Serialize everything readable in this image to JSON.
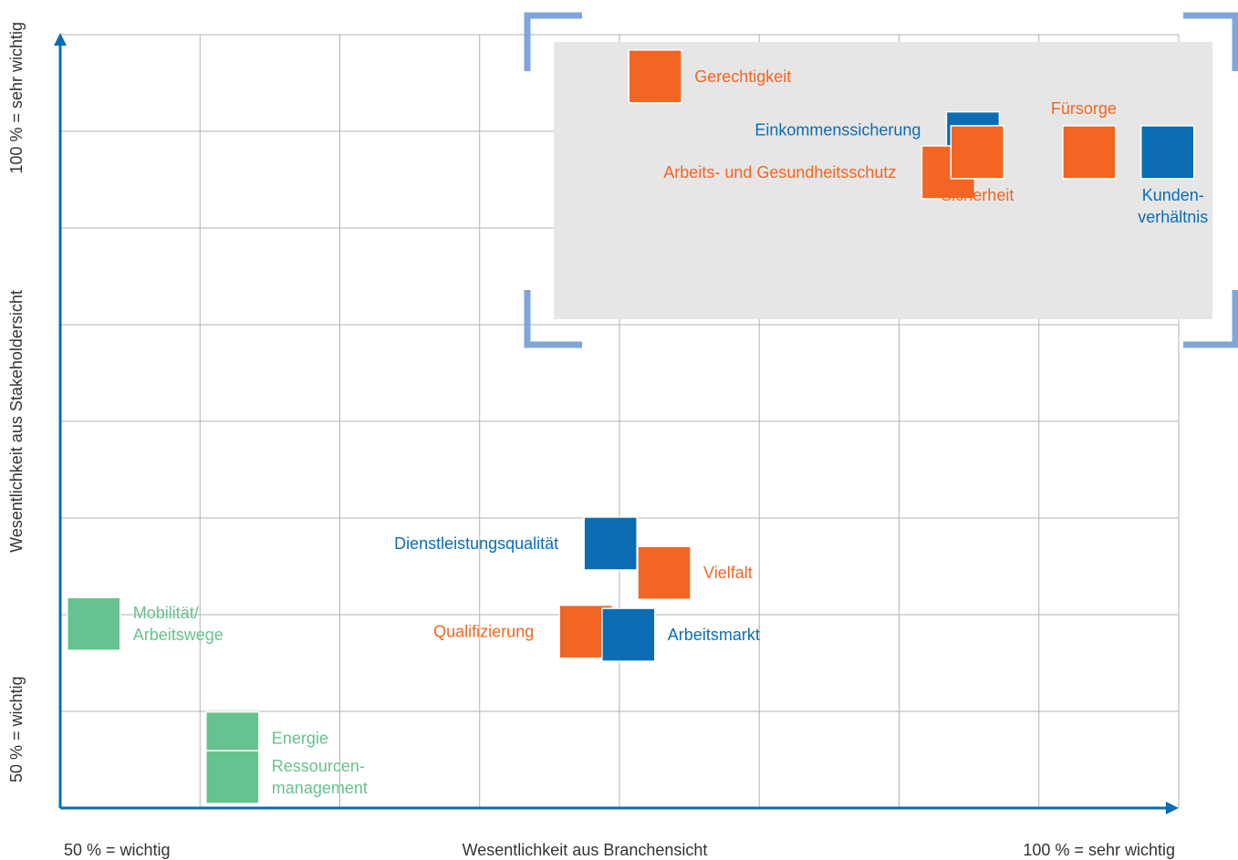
{
  "chart_data": {
    "type": "scatter",
    "xlabel": "Wesentlichkeit aus Branchensicht",
    "ylabel": "Wesentlichkeit aus Stakeholdersicht",
    "x_min_label": "50 % = wichtig",
    "x_max_label": "100 % = sehr wichtig",
    "y_min_label": "50 % = wichtig",
    "y_max_label": "100 % = sehr wichtig",
    "xlim": [
      50,
      100
    ],
    "ylim": [
      50,
      100
    ],
    "grid": true,
    "colors": {
      "orange": "#f26522",
      "blue": "#0a6db3",
      "green": "#66c28e",
      "highlight": "#e6e6e6",
      "bracket": "#7fa6d9",
      "axis": "#0a6db3"
    },
    "points": [
      {
        "label": "Gerechtigkeit",
        "x": 76.6,
        "y": 97.3,
        "color": "orange",
        "label_pos": "right"
      },
      {
        "label": "Einkommenssicherung",
        "x": 90.8,
        "y": 93.3,
        "color": "blue",
        "label_pos": "left-top"
      },
      {
        "label": "Arbeits- und Gesundheitsschutz",
        "x": 89.7,
        "y": 91.1,
        "color": "orange",
        "label_pos": "left"
      },
      {
        "label": "Sicherheit",
        "x": 91.0,
        "y": 92.4,
        "color": "orange",
        "label_pos": "below"
      },
      {
        "label": "Fürsorge",
        "x": 96.0,
        "y": 92.4,
        "color": "orange",
        "label_pos": "above"
      },
      {
        "label": "Kunden-\nverhältnis",
        "x": 99.5,
        "y": 92.4,
        "color": "blue",
        "label_pos": "below"
      },
      {
        "label": "Dienstleistungsqualität",
        "x": 74.6,
        "y": 67.1,
        "color": "blue",
        "label_pos": "left"
      },
      {
        "label": "Vielfalt",
        "x": 77.0,
        "y": 65.2,
        "color": "orange",
        "label_pos": "right"
      },
      {
        "label": "Qualifizierung",
        "x": 73.5,
        "y": 61.4,
        "color": "orange",
        "label_pos": "left"
      },
      {
        "label": "Arbeitsmarkt",
        "x": 75.4,
        "y": 61.2,
        "color": "blue",
        "label_pos": "right"
      },
      {
        "label": "Mobilität/\nArbeitswege",
        "x": 51.5,
        "y": 61.9,
        "color": "green",
        "label_pos": "right"
      },
      {
        "label": "Energie",
        "x": 57.7,
        "y": 54.5,
        "color": "green",
        "label_pos": "right"
      },
      {
        "label": "Ressourcen-\nmanagement",
        "x": 57.7,
        "y": 52.0,
        "color": "green",
        "label_pos": "right"
      }
    ]
  }
}
